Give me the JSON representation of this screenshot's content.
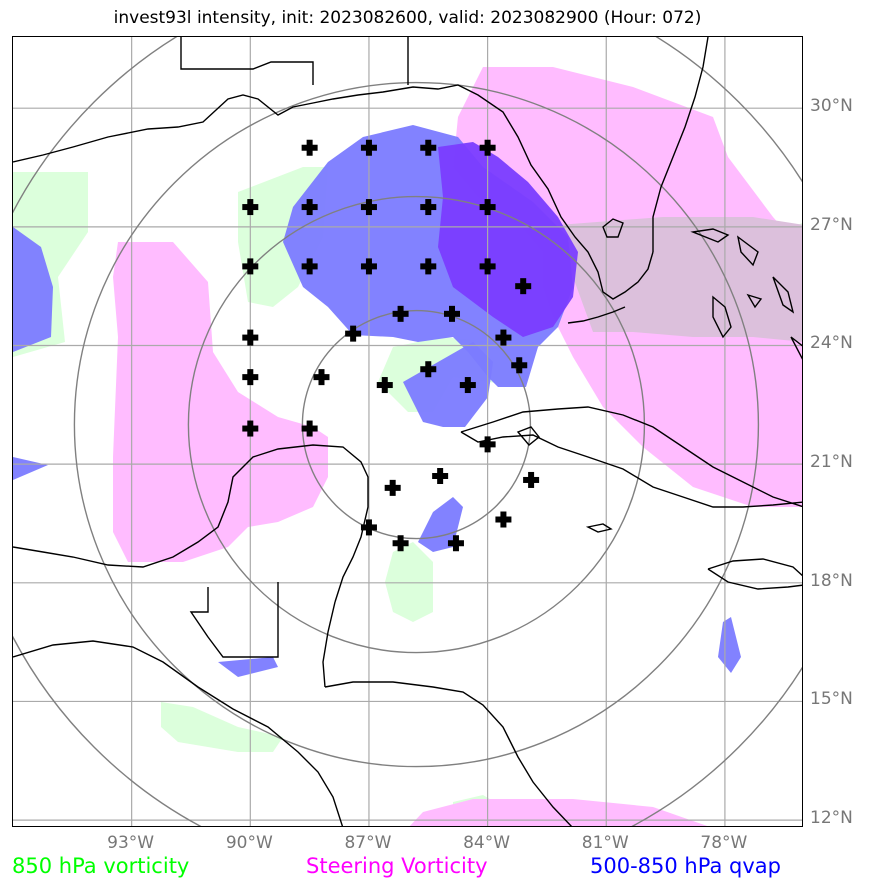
{
  "title": "invest93l intensity, init: 2023082600, valid: 2023082900 (Hour: 072)",
  "map": {
    "lat_labels": [
      "30°N",
      "27°N",
      "24°N",
      "21°N",
      "18°N",
      "15°N",
      "12°N"
    ],
    "lon_labels": [
      "93°W",
      "90°W",
      "87°W",
      "84°W",
      "81°W",
      "78°W"
    ],
    "lat_range": [
      11.8,
      31.8
    ],
    "lon_range": [
      -96.0,
      -76.0
    ],
    "range_rings": 4,
    "storm_center": {
      "lon": -85.8,
      "lat": 22.0
    }
  },
  "legend": [
    {
      "label": "850 hPa vorticity",
      "color": "#00ff00"
    },
    {
      "label": "Steering Vorticity",
      "color": "#ff00ff"
    },
    {
      "label": "500-850 hPa qvap",
      "color": "#0000ff"
    }
  ],
  "colors": {
    "vort850": "#dcffdc",
    "steering": "#ffbcff",
    "qvap_light": "#7b7bff",
    "qvap_dark": "#7a3cff",
    "overlap": "#dcc0dc",
    "grid": "#aaaaaa",
    "coast": "#000000",
    "ring": "#808080"
  },
  "markers": {
    "icon": "cross-marker-icon",
    "points": [
      [
        -88.5,
        29.0
      ],
      [
        -87.0,
        29.0
      ],
      [
        -85.5,
        29.0
      ],
      [
        -84.0,
        29.0
      ],
      [
        -90.0,
        27.5
      ],
      [
        -88.5,
        27.5
      ],
      [
        -87.0,
        27.5
      ],
      [
        -85.5,
        27.5
      ],
      [
        -84.0,
        27.5
      ],
      [
        -90.0,
        26.0
      ],
      [
        -88.5,
        26.0
      ],
      [
        -87.0,
        26.0
      ],
      [
        -85.5,
        26.0
      ],
      [
        -84.0,
        26.0
      ],
      [
        -83.1,
        25.5
      ],
      [
        -86.2,
        24.8
      ],
      [
        -84.9,
        24.8
      ],
      [
        -87.4,
        24.3
      ],
      [
        -83.6,
        24.2
      ],
      [
        -90.0,
        24.2
      ],
      [
        -90.0,
        23.2
      ],
      [
        -88.2,
        23.2
      ],
      [
        -86.6,
        23.0
      ],
      [
        -85.5,
        23.4
      ],
      [
        -84.5,
        23.0
      ],
      [
        -83.2,
        23.5
      ],
      [
        -90.0,
        21.9
      ],
      [
        -88.5,
        21.9
      ],
      [
        -84.0,
        21.5
      ],
      [
        -85.2,
        20.7
      ],
      [
        -86.4,
        20.4
      ],
      [
        -82.9,
        20.6
      ],
      [
        -87.0,
        19.4
      ],
      [
        -83.6,
        19.6
      ],
      [
        -86.2,
        19.0
      ],
      [
        -84.8,
        19.0
      ]
    ]
  }
}
